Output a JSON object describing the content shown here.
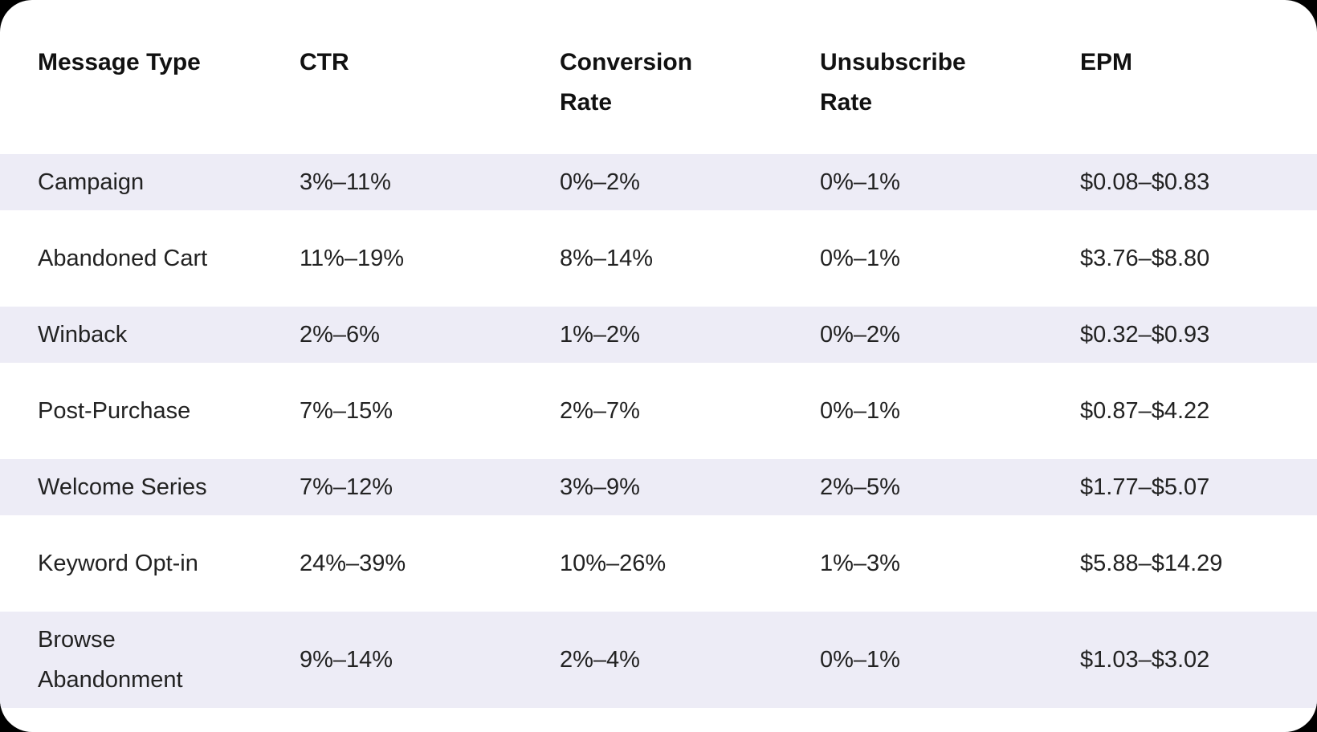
{
  "colors": {
    "page_background": "#000000",
    "card_background": "#ffffff",
    "stripe_background": "#edecf6",
    "header_text": "#111111",
    "body_text": "#222222"
  },
  "chart_data": {
    "type": "table",
    "columns": [
      "Message Type",
      "CTR",
      "Conversion Rate",
      "Unsubscribe Rate",
      "EPM"
    ],
    "rows": [
      [
        "Campaign",
        "3%–11%",
        "0%–2%",
        "0%–1%",
        "$0.08–$0.83"
      ],
      [
        "Abandoned Cart",
        "11%–19%",
        "8%–14%",
        "0%–1%",
        "$3.76–$8.80"
      ],
      [
        "Winback",
        "2%–6%",
        "1%–2%",
        "0%–2%",
        "$0.32–$0.93"
      ],
      [
        "Post-Purchase",
        "7%–15%",
        "2%–7%",
        "0%–1%",
        "$0.87–$4.22"
      ],
      [
        "Welcome Series",
        "7%–12%",
        "3%–9%",
        "2%–5%",
        "$1.77–$5.07"
      ],
      [
        "Keyword Opt-in",
        "24%–39%",
        "10%–26%",
        "1%–3%",
        "$5.88–$14.29"
      ],
      [
        "Browse Abandonment",
        "9%–14%",
        "2%–4%",
        "0%–1%",
        "$1.03–$3.02"
      ]
    ],
    "layout": {
      "striped_rows": [
        1,
        3,
        5,
        7
      ],
      "grid": "off",
      "header_position": "top"
    }
  }
}
